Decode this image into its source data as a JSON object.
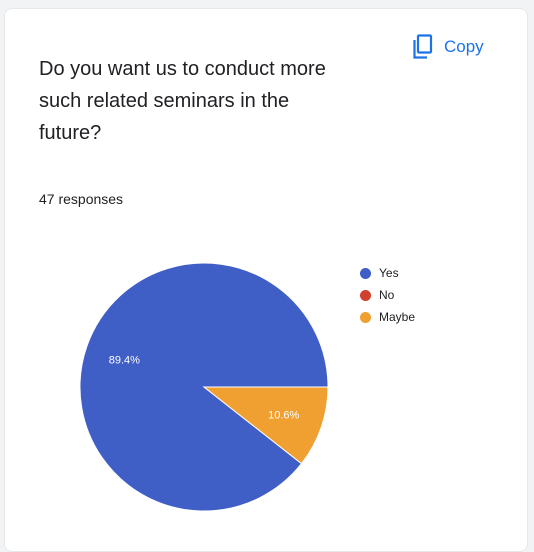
{
  "card": {
    "question": "Do you want us to conduct more\nsuch  related seminars in the\nfuture?",
    "copy_label": "Copy",
    "copy_icon": "copy-icon",
    "responses": "47 responses"
  },
  "colors": {
    "accent": "#1a73e8",
    "yes": "#3f5fc7",
    "no": "#d0402c",
    "maybe": "#f0a030"
  },
  "chart_data": {
    "type": "pie",
    "slices": [
      {
        "label": "Yes",
        "value": 89.4,
        "data_label": "89.4%",
        "color": "#3f5fc7"
      },
      {
        "label": "No",
        "value": 0,
        "data_label": "",
        "color": "#d0402c"
      },
      {
        "label": "Maybe",
        "value": 10.6,
        "data_label": "10.6%",
        "color": "#f0a030"
      }
    ],
    "legend": [
      "Yes",
      "No",
      "Maybe"
    ],
    "legend_position": "right"
  }
}
